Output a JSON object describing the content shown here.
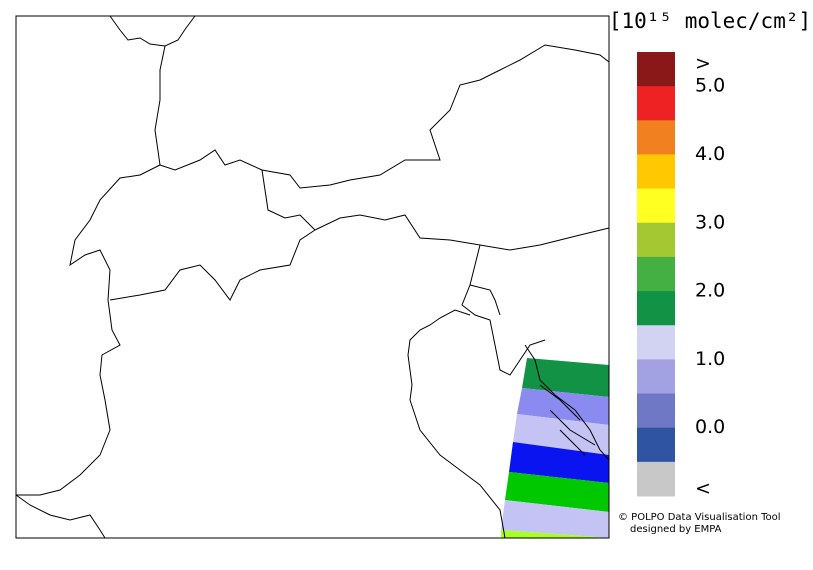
{
  "colorbar": {
    "unit": "[10¹⁵ molec/cm²]",
    "colors": [
      "#8b1818",
      "#ee2222",
      "#f08020",
      "#ffc800",
      "#ffff22",
      "#a4c832",
      "#44b044",
      "#119244",
      "#d2d2f2",
      "#a2a2e2",
      "#6e78c4",
      "#2e54a2",
      "#c8c8c8"
    ],
    "labels": [
      ">",
      "5.0",
      "4.0",
      "3.0",
      "2.0",
      "1.0",
      "0.0",
      "<"
    ]
  },
  "credit": {
    "line1": "© POLPO Data Visualisation Tool",
    "line2": "designed by EMPA"
  }
}
